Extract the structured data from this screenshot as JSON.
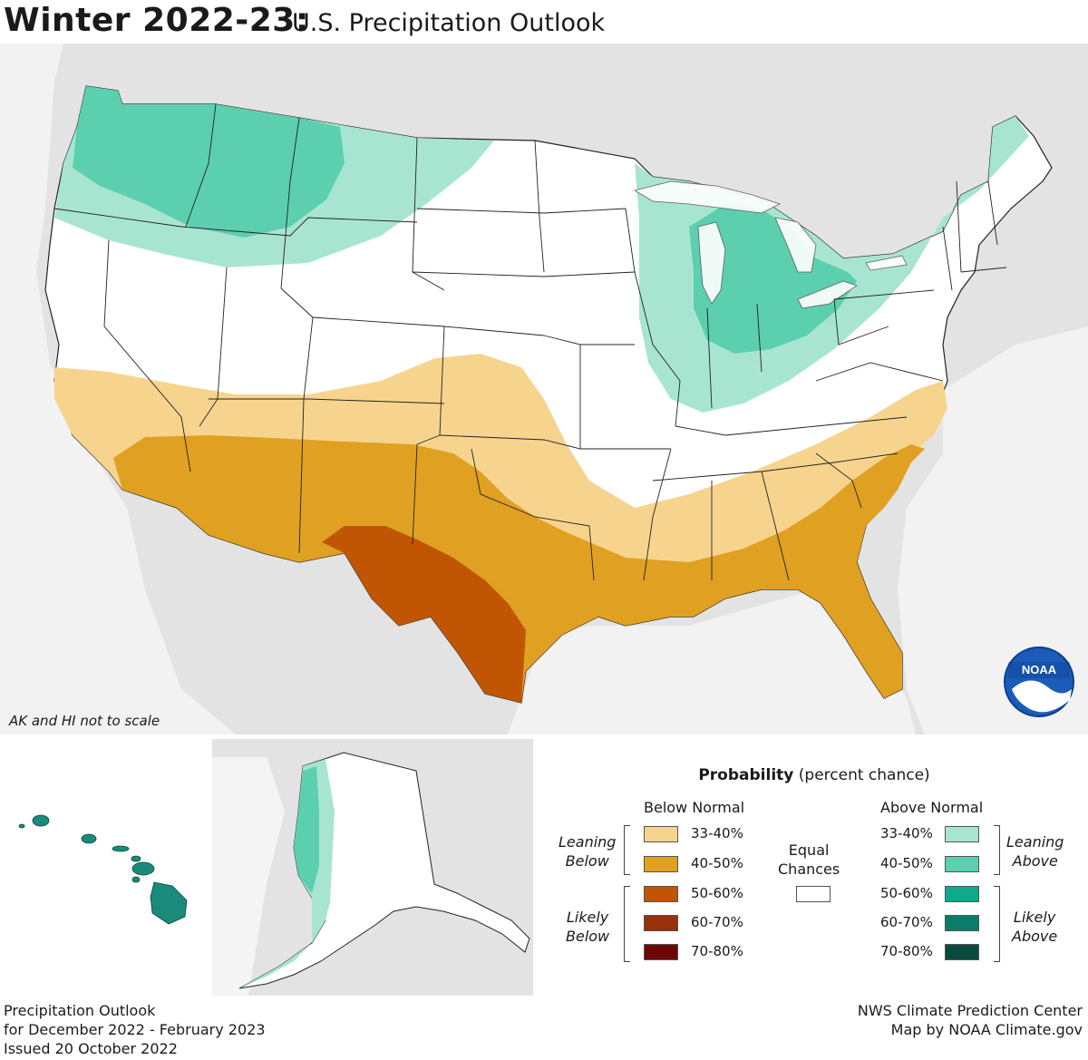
{
  "title": {
    "main": "Winter 2022-23:",
    "sub": "U.S. Precipitation Outlook"
  },
  "map_note": "AK and HI not to scale",
  "logo": {
    "name": "noaa-logo",
    "text": "NOAA"
  },
  "legend": {
    "title_bold": "Probability",
    "title_rest": "(percent chance)",
    "below_header": "Below Normal",
    "above_header": "Above Normal",
    "below": [
      {
        "label": "33-40%",
        "color": "#f7d48e"
      },
      {
        "label": "40-50%",
        "color": "#e0a022"
      },
      {
        "label": "50-60%",
        "color": "#c05504"
      },
      {
        "label": "60-70%",
        "color": "#98300a"
      },
      {
        "label": "70-80%",
        "color": "#6b0707"
      }
    ],
    "above": [
      {
        "label": "33-40%",
        "color": "#a8e5d1"
      },
      {
        "label": "40-50%",
        "color": "#5ccfae"
      },
      {
        "label": "50-60%",
        "color": "#0fa98b"
      },
      {
        "label": "60-70%",
        "color": "#0b7b6a"
      },
      {
        "label": "70-80%",
        "color": "#0a4a3e"
      }
    ],
    "equal_line1": "Equal",
    "equal_line2": "Chances",
    "equal_color": "#ffffff",
    "leaning_below": [
      "Leaning",
      "Below"
    ],
    "likely_below": [
      "Likely",
      "Below"
    ],
    "leaning_above": [
      "Leaning",
      "Above"
    ],
    "likely_above": [
      "Likely",
      "Above"
    ]
  },
  "footer": {
    "line1": "Precipitation Outlook",
    "line2": "for December 2022 - February 2023",
    "line3": "Issued 20 October 2022",
    "credit1": "NWS Climate Prediction Center",
    "credit2": "Map by NOAA Climate.gov"
  },
  "colors": {
    "land_other": "#e3e3e3",
    "water": "#ffffff",
    "hawaii": "#1a8a7a"
  }
}
